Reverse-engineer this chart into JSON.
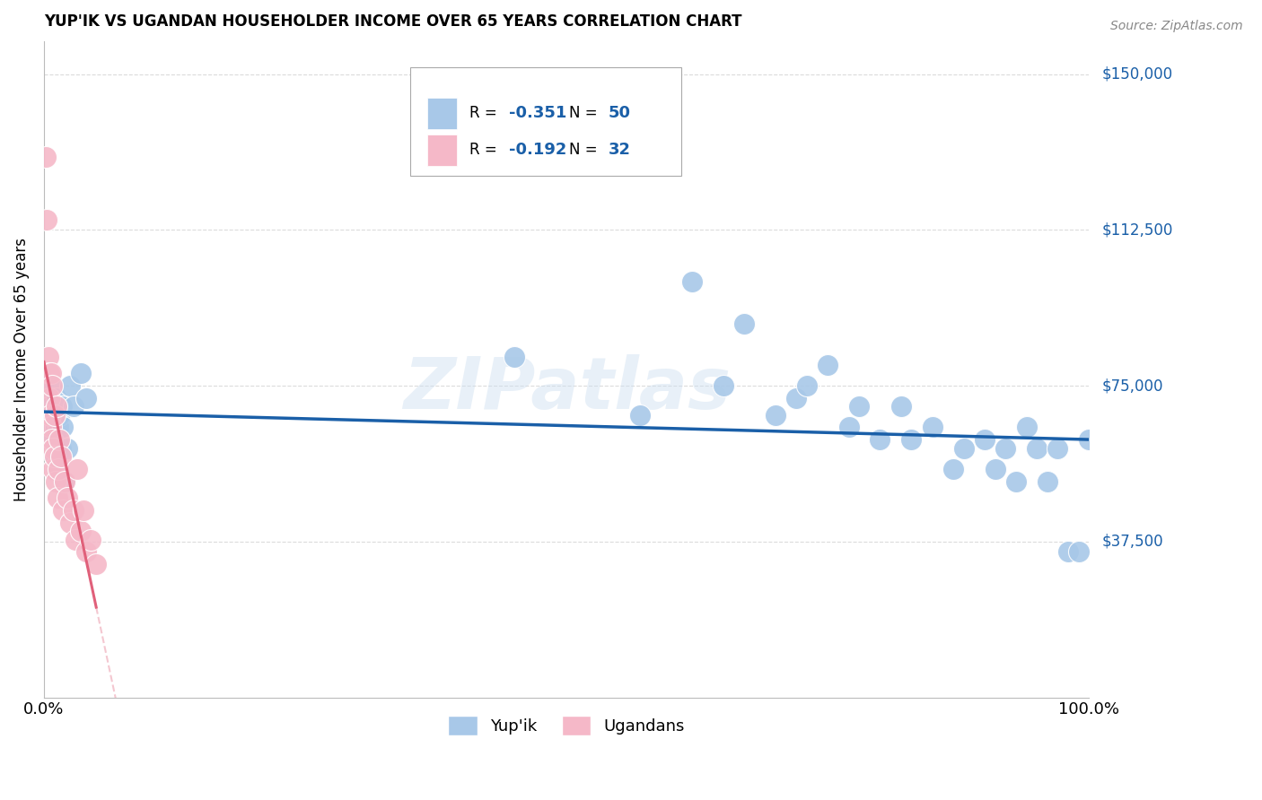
{
  "title": "YUP'IK VS UGANDAN HOUSEHOLDER INCOME OVER 65 YEARS CORRELATION CHART",
  "source": "Source: ZipAtlas.com",
  "ylabel": "Householder Income Over 65 years",
  "legend_label1": "Yup'ik",
  "legend_label2": "Ugandans",
  "R1": -0.351,
  "N1": 50,
  "R2": -0.192,
  "N2": 32,
  "color_blue": "#a8c8e8",
  "color_blue_line": "#1a5fa8",
  "color_pink": "#f5b8c8",
  "color_pink_line": "#e0607a",
  "color_text_blue": "#1a5fa8",
  "ytick_labels": [
    "$37,500",
    "$75,000",
    "$112,500",
    "$150,000"
  ],
  "ytick_values": [
    37500,
    75000,
    112500,
    150000
  ],
  "ylim": [
    0,
    158000
  ],
  "xlim": [
    0.0,
    1.0
  ],
  "watermark": "ZIPatlas",
  "yup_x": [
    0.003,
    0.004,
    0.005,
    0.006,
    0.007,
    0.008,
    0.009,
    0.01,
    0.011,
    0.012,
    0.013,
    0.014,
    0.015,
    0.016,
    0.017,
    0.018,
    0.02,
    0.022,
    0.025,
    0.028,
    0.035,
    0.04,
    0.45,
    0.57,
    0.62,
    0.65,
    0.67,
    0.7,
    0.72,
    0.73,
    0.75,
    0.77,
    0.78,
    0.8,
    0.82,
    0.83,
    0.85,
    0.87,
    0.88,
    0.9,
    0.91,
    0.92,
    0.93,
    0.94,
    0.95,
    0.96,
    0.97,
    0.98,
    0.99,
    1.0
  ],
  "yup_y": [
    68000,
    72000,
    65000,
    70000,
    75000,
    62000,
    68000,
    58000,
    65000,
    72000,
    55000,
    65000,
    68000,
    60000,
    70000,
    65000,
    52000,
    60000,
    75000,
    70000,
    78000,
    72000,
    82000,
    68000,
    100000,
    75000,
    90000,
    68000,
    72000,
    75000,
    80000,
    65000,
    70000,
    62000,
    70000,
    62000,
    65000,
    55000,
    60000,
    62000,
    55000,
    60000,
    52000,
    65000,
    60000,
    52000,
    60000,
    35000,
    35000,
    62000
  ],
  "uga_x": [
    0.002,
    0.003,
    0.004,
    0.005,
    0.005,
    0.006,
    0.007,
    0.007,
    0.008,
    0.008,
    0.009,
    0.009,
    0.01,
    0.01,
    0.011,
    0.012,
    0.013,
    0.014,
    0.015,
    0.016,
    0.018,
    0.02,
    0.022,
    0.025,
    0.028,
    0.03,
    0.032,
    0.035,
    0.038,
    0.04,
    0.045,
    0.05
  ],
  "uga_y": [
    130000,
    115000,
    82000,
    78000,
    72000,
    68000,
    78000,
    65000,
    75000,
    62000,
    60000,
    55000,
    68000,
    58000,
    52000,
    70000,
    48000,
    55000,
    62000,
    58000,
    45000,
    52000,
    48000,
    42000,
    45000,
    38000,
    55000,
    40000,
    45000,
    35000,
    38000,
    32000
  ]
}
